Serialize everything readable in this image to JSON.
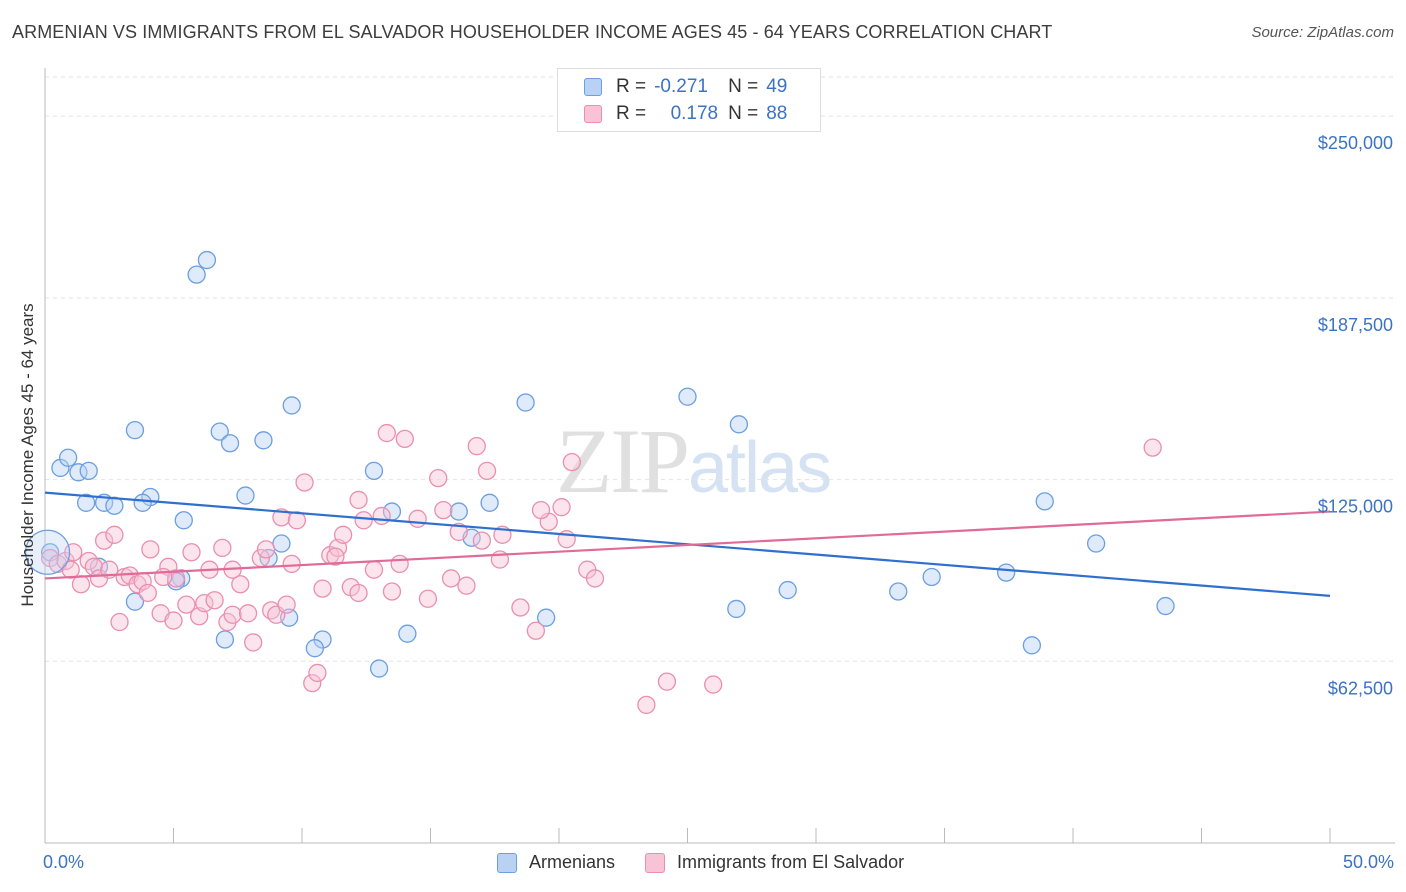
{
  "title": "ARMENIAN VS IMMIGRANTS FROM EL SALVADOR HOUSEHOLDER INCOME AGES 45 - 64 YEARS CORRELATION CHART",
  "source": "Source: ZipAtlas.com",
  "watermark": {
    "part1": "ZIP",
    "part2": "atlas"
  },
  "colors": {
    "blue": "#6b9fe0",
    "blue_fill": "#b9d1f3",
    "blue_line": "#2f6fcf",
    "pink": "#ea8fb0",
    "pink_fill": "#f7c3d5",
    "pink_line": "#e06b96",
    "tick_label": "#3b73c4",
    "grid": "#e3e3e3"
  },
  "legend": {
    "rows": [
      {
        "r_label": "R =",
        "r_value": "-0.271",
        "n_label": "N =",
        "n_value": "49"
      },
      {
        "r_label": "R =",
        "r_value": "0.178",
        "n_label": "N =",
        "n_value": "88"
      }
    ]
  },
  "chart_data": {
    "type": "scatter",
    "title": "ARMENIAN VS IMMIGRANTS FROM EL SALVADOR HOUSEHOLDER INCOME AGES 45 - 64 YEARS CORRELATION CHART",
    "xlabel": "",
    "ylabel": "Householder Income Ages 45 - 64 years",
    "xlim": [
      0,
      50
    ],
    "ylim": [
      0,
      270000
    ],
    "x_tick_labels": {
      "left": "0.0%",
      "right": "50.0%"
    },
    "y_ticks": [
      62500,
      125000,
      187500,
      250000
    ],
    "y_tick_labels": [
      "$62,500",
      "$125,000",
      "$187,500",
      "$250,000"
    ],
    "grid": true,
    "legend_position": "top-center",
    "series": [
      {
        "name": "Armenians",
        "color": "blue",
        "r": "-0.271",
        "n": "49",
        "trend": {
          "x": [
            0,
            50
          ],
          "y": [
            120500,
            85000
          ]
        },
        "points": [
          [
            0.2,
            100000
          ],
          [
            0.6,
            129000
          ],
          [
            1.3,
            127500
          ],
          [
            1.6,
            117000
          ],
          [
            0.9,
            132500
          ],
          [
            1.7,
            128000
          ],
          [
            2.3,
            117000
          ],
          [
            2.7,
            116000
          ],
          [
            2.1,
            95000
          ],
          [
            3.5,
            142000
          ],
          [
            4.1,
            119000
          ],
          [
            3.8,
            117000
          ],
          [
            5.4,
            111000
          ],
          [
            5.3,
            91000
          ],
          [
            5.1,
            90000
          ],
          [
            3.5,
            83000
          ],
          [
            6.3,
            200500
          ],
          [
            5.9,
            195500
          ],
          [
            6.8,
            141500
          ],
          [
            7.2,
            137500
          ],
          [
            7.8,
            119500
          ],
          [
            8.5,
            138500
          ],
          [
            8.7,
            98000
          ],
          [
            9.2,
            103000
          ],
          [
            9.5,
            77500
          ],
          [
            9.6,
            150500
          ],
          [
            7.0,
            70000
          ],
          [
            10.8,
            70000
          ],
          [
            10.5,
            67000
          ],
          [
            12.8,
            128000
          ],
          [
            13.5,
            114000
          ],
          [
            13.0,
            60000
          ],
          [
            14.1,
            72000
          ],
          [
            16.1,
            114000
          ],
          [
            16.6,
            105000
          ],
          [
            17.3,
            117000
          ],
          [
            18.7,
            151500
          ],
          [
            19.5,
            77500
          ],
          [
            25.0,
            153500
          ],
          [
            27.0,
            144000
          ],
          [
            26.9,
            80500
          ],
          [
            28.9,
            87000
          ],
          [
            33.2,
            86500
          ],
          [
            34.5,
            91500
          ],
          [
            37.4,
            93000
          ],
          [
            38.4,
            68000
          ],
          [
            38.9,
            117500
          ],
          [
            40.9,
            103000
          ],
          [
            43.6,
            81500
          ]
        ]
      },
      {
        "name": "Immigrants from El Salvador",
        "color": "pink",
        "r": "0.178",
        "n": "88",
        "trend": {
          "x": [
            0,
            50
          ],
          "y": [
            91000,
            114000
          ]
        },
        "points": [
          [
            0.2,
            98000
          ],
          [
            0.5,
            96000
          ],
          [
            0.8,
            97000
          ],
          [
            1.0,
            94000
          ],
          [
            1.1,
            100000
          ],
          [
            1.4,
            89000
          ],
          [
            1.7,
            97000
          ],
          [
            1.9,
            95000
          ],
          [
            2.1,
            91000
          ],
          [
            2.3,
            104000
          ],
          [
            2.5,
            94000
          ],
          [
            2.7,
            106000
          ],
          [
            2.9,
            76000
          ],
          [
            3.1,
            91500
          ],
          [
            3.3,
            92000
          ],
          [
            3.6,
            89000
          ],
          [
            3.8,
            90000
          ],
          [
            4.0,
            86000
          ],
          [
            4.1,
            101000
          ],
          [
            4.5,
            79000
          ],
          [
            4.8,
            95000
          ],
          [
            5.0,
            76500
          ],
          [
            5.1,
            91000
          ],
          [
            5.5,
            82000
          ],
          [
            5.7,
            100000
          ],
          [
            6.0,
            78000
          ],
          [
            6.2,
            82500
          ],
          [
            6.4,
            94000
          ],
          [
            6.6,
            83500
          ],
          [
            6.9,
            101500
          ],
          [
            7.1,
            76000
          ],
          [
            7.3,
            78500
          ],
          [
            7.6,
            89000
          ],
          [
            7.9,
            79000
          ],
          [
            8.1,
            69000
          ],
          [
            8.4,
            98000
          ],
          [
            8.6,
            101000
          ],
          [
            8.8,
            80000
          ],
          [
            9.0,
            78500
          ],
          [
            9.2,
            112000
          ],
          [
            9.4,
            82000
          ],
          [
            9.6,
            96000
          ],
          [
            9.8,
            111000
          ],
          [
            10.1,
            124000
          ],
          [
            10.4,
            55000
          ],
          [
            10.6,
            58500
          ],
          [
            10.8,
            87500
          ],
          [
            11.1,
            99000
          ],
          [
            11.4,
            101500
          ],
          [
            11.6,
            106000
          ],
          [
            11.9,
            88000
          ],
          [
            12.2,
            118000
          ],
          [
            12.4,
            111000
          ],
          [
            12.8,
            94000
          ],
          [
            13.1,
            112500
          ],
          [
            13.3,
            141000
          ],
          [
            13.5,
            86500
          ],
          [
            13.8,
            96000
          ],
          [
            14.0,
            139000
          ],
          [
            14.5,
            111500
          ],
          [
            14.9,
            84000
          ],
          [
            15.3,
            125500
          ],
          [
            15.5,
            114500
          ],
          [
            15.8,
            91000
          ],
          [
            16.1,
            107000
          ],
          [
            16.4,
            88500
          ],
          [
            16.8,
            136500
          ],
          [
            17.0,
            104000
          ],
          [
            17.2,
            128000
          ],
          [
            17.7,
            97500
          ],
          [
            17.8,
            106000
          ],
          [
            18.5,
            81000
          ],
          [
            19.1,
            73000
          ],
          [
            19.6,
            110500
          ],
          [
            20.1,
            115500
          ],
          [
            20.3,
            104500
          ],
          [
            20.5,
            131000
          ],
          [
            21.1,
            94000
          ],
          [
            21.4,
            91000
          ],
          [
            19.3,
            114500
          ],
          [
            23.4,
            47500
          ],
          [
            24.2,
            55500
          ],
          [
            26.0,
            54500
          ],
          [
            43.1,
            136000
          ],
          [
            4.6,
            91500
          ],
          [
            7.3,
            94000
          ],
          [
            11.3,
            98500
          ],
          [
            12.2,
            86000
          ]
        ]
      }
    ]
  }
}
